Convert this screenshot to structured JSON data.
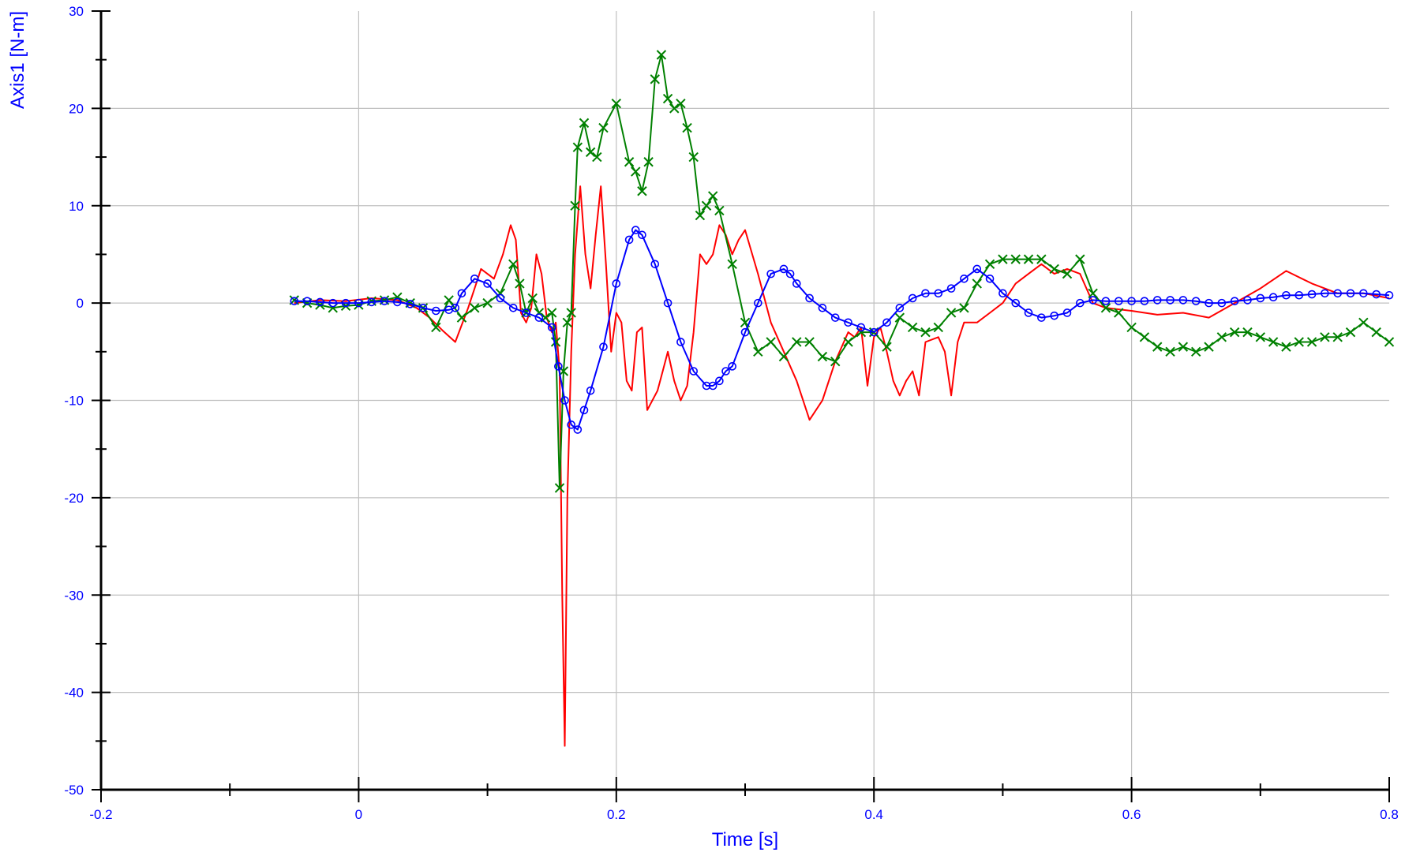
{
  "chart_data": {
    "type": "line",
    "xlabel": "Time [s]",
    "ylabel": "Axis1 [N-m]",
    "xlim": [
      -0.2,
      0.8
    ],
    "ylim": [
      -50,
      30
    ],
    "x_ticks": [
      -0.2,
      0,
      0.2,
      0.4,
      0.6,
      0.8
    ],
    "x_tick_labels": [
      "-0.2",
      "0",
      "0.2",
      "0.4",
      "0.6",
      "0.8"
    ],
    "y_ticks": [
      -50,
      -40,
      -30,
      -20,
      -10,
      0,
      10,
      20,
      30
    ],
    "y_tick_labels": [
      "-50",
      "-40",
      "-30",
      "-20",
      "-10",
      "0",
      "10",
      "20",
      "30"
    ],
    "grid": true,
    "colors": {
      "axis_text": "#0000ff",
      "grid": "#c0c0c0",
      "axis_line": "#000000"
    },
    "series": [
      {
        "color": "#ff0000",
        "marker": "none",
        "x": [
          -0.05,
          -0.03,
          -0.01,
          0.01,
          0.03,
          0.045,
          0.055,
          0.065,
          0.075,
          0.085,
          0.095,
          0.105,
          0.112,
          0.118,
          0.122,
          0.126,
          0.13,
          0.134,
          0.138,
          0.142,
          0.146,
          0.15,
          0.153,
          0.156,
          0.158,
          0.16,
          0.162,
          0.165,
          0.168,
          0.172,
          0.176,
          0.18,
          0.184,
          0.188,
          0.192,
          0.196,
          0.2,
          0.204,
          0.208,
          0.212,
          0.216,
          0.22,
          0.224,
          0.228,
          0.232,
          0.236,
          0.24,
          0.245,
          0.25,
          0.255,
          0.26,
          0.265,
          0.27,
          0.275,
          0.28,
          0.285,
          0.29,
          0.295,
          0.3,
          0.31,
          0.32,
          0.33,
          0.34,
          0.35,
          0.36,
          0.37,
          0.38,
          0.385,
          0.39,
          0.395,
          0.4,
          0.405,
          0.41,
          0.415,
          0.42,
          0.425,
          0.43,
          0.435,
          0.44,
          0.45,
          0.455,
          0.46,
          0.465,
          0.47,
          0.48,
          0.49,
          0.5,
          0.51,
          0.52,
          0.53,
          0.54,
          0.55,
          0.56,
          0.57,
          0.58,
          0.6,
          0.62,
          0.64,
          0.66,
          0.68,
          0.7,
          0.72,
          0.74,
          0.76,
          0.78,
          0.8
        ],
        "y": [
          0,
          0.3,
          0.2,
          0.5,
          0.3,
          -0.5,
          -1.5,
          -2.8,
          -4,
          -0.5,
          3.5,
          2.5,
          5,
          8,
          6.5,
          -1,
          -2,
          -0.5,
          5,
          3,
          -1.5,
          -3,
          -2,
          -7,
          -30,
          -45.5,
          -20,
          -5,
          5,
          12,
          5,
          1.5,
          7,
          12,
          4,
          -5,
          -1,
          -2,
          -8,
          -9,
          -3,
          -2.5,
          -11,
          -10,
          -9,
          -7,
          -5,
          -8,
          -10,
          -8.5,
          -3,
          5,
          4,
          5,
          8,
          7,
          5,
          6.5,
          7.5,
          3,
          -2,
          -5,
          -8,
          -12,
          -10,
          -6,
          -3,
          -3.5,
          -2.5,
          -8.5,
          -3.5,
          -2.5,
          -5,
          -8,
          -9.5,
          -8,
          -7,
          -9.5,
          -4,
          -3.5,
          -5,
          -9.5,
          -4,
          -2,
          -2,
          -1,
          0,
          2,
          3,
          4,
          3,
          3.5,
          3,
          0,
          -0.5,
          -0.8,
          -1.2,
          -1,
          -1.5,
          0,
          1.5,
          3.3,
          2,
          1,
          1,
          0.5
        ]
      },
      {
        "color": "#008000",
        "marker": "x",
        "x": [
          -0.05,
          -0.04,
          -0.03,
          -0.02,
          -0.01,
          0,
          0.01,
          0.02,
          0.03,
          0.04,
          0.05,
          0.06,
          0.07,
          0.08,
          0.09,
          0.1,
          0.11,
          0.12,
          0.125,
          0.13,
          0.135,
          0.14,
          0.145,
          0.15,
          0.153,
          0.156,
          0.159,
          0.162,
          0.165,
          0.168,
          0.17,
          0.175,
          0.18,
          0.185,
          0.19,
          0.2,
          0.21,
          0.215,
          0.22,
          0.225,
          0.23,
          0.235,
          0.24,
          0.245,
          0.25,
          0.255,
          0.26,
          0.265,
          0.27,
          0.275,
          0.28,
          0.29,
          0.3,
          0.31,
          0.32,
          0.33,
          0.34,
          0.35,
          0.36,
          0.37,
          0.38,
          0.39,
          0.4,
          0.41,
          0.42,
          0.43,
          0.44,
          0.45,
          0.46,
          0.47,
          0.48,
          0.49,
          0.5,
          0.51,
          0.52,
          0.53,
          0.54,
          0.55,
          0.56,
          0.57,
          0.58,
          0.59,
          0.6,
          0.61,
          0.62,
          0.63,
          0.64,
          0.65,
          0.66,
          0.67,
          0.68,
          0.69,
          0.7,
          0.71,
          0.72,
          0.73,
          0.74,
          0.75,
          0.76,
          0.77,
          0.78,
          0.79,
          0.8
        ],
        "y": [
          0.3,
          0,
          -0.2,
          -0.5,
          -0.3,
          -0.2,
          0.2,
          0.3,
          0.6,
          0,
          -0.5,
          -2.5,
          0.3,
          -1.5,
          -0.5,
          0,
          1,
          4,
          2,
          -1,
          0.5,
          -1,
          -1.5,
          -1,
          -4,
          -19,
          -7,
          -2,
          -1,
          10,
          16,
          18.5,
          15.5,
          15,
          18,
          20.5,
          14.5,
          13.5,
          11.5,
          14.5,
          23,
          25.5,
          21,
          20,
          20.5,
          18,
          15,
          9,
          10,
          11,
          9.5,
          4,
          -2,
          -5,
          -4,
          -5.5,
          -4,
          -4,
          -5.5,
          -6,
          -4,
          -3,
          -3,
          -4.5,
          -1.5,
          -2.5,
          -3,
          -2.5,
          -1,
          -0.5,
          2,
          4,
          4.5,
          4.5,
          4.5,
          4.5,
          3.5,
          3,
          4.5,
          1,
          -0.5,
          -1,
          -2.5,
          -3.5,
          -4.5,
          -5,
          -4.5,
          -5,
          -4.5,
          -3.5,
          -3,
          -3,
          -3.5,
          -4,
          -4.5,
          -4,
          -4,
          -3.5,
          -3.5,
          -3,
          -2,
          -3,
          -4
        ]
      },
      {
        "color": "#0000ff",
        "marker": "o",
        "x": [
          -0.05,
          -0.04,
          -0.03,
          -0.02,
          -0.01,
          0,
          0.01,
          0.02,
          0.03,
          0.04,
          0.05,
          0.06,
          0.07,
          0.075,
          0.08,
          0.09,
          0.1,
          0.11,
          0.12,
          0.13,
          0.14,
          0.15,
          0.155,
          0.16,
          0.165,
          0.17,
          0.175,
          0.18,
          0.19,
          0.2,
          0.21,
          0.215,
          0.22,
          0.23,
          0.24,
          0.25,
          0.26,
          0.27,
          0.275,
          0.28,
          0.285,
          0.29,
          0.3,
          0.31,
          0.32,
          0.33,
          0.335,
          0.34,
          0.35,
          0.36,
          0.37,
          0.38,
          0.39,
          0.4,
          0.41,
          0.42,
          0.43,
          0.44,
          0.45,
          0.46,
          0.47,
          0.48,
          0.49,
          0.5,
          0.51,
          0.52,
          0.53,
          0.54,
          0.55,
          0.56,
          0.57,
          0.58,
          0.59,
          0.6,
          0.61,
          0.62,
          0.63,
          0.64,
          0.65,
          0.66,
          0.67,
          0.68,
          0.69,
          0.7,
          0.71,
          0.72,
          0.73,
          0.74,
          0.75,
          0.76,
          0.77,
          0.78,
          0.79,
          0.8
        ],
        "y": [
          0.2,
          0.2,
          0.1,
          0,
          0,
          0,
          0.1,
          0.2,
          0.1,
          -0.1,
          -0.5,
          -0.8,
          -0.7,
          -0.5,
          1,
          2.5,
          2,
          0.5,
          -0.5,
          -1,
          -1.5,
          -2.5,
          -6.5,
          -10,
          -12.5,
          -13,
          -11,
          -9,
          -4.5,
          2,
          6.5,
          7.5,
          7,
          4,
          0,
          -4,
          -7,
          -8.5,
          -8.5,
          -8,
          -7,
          -6.5,
          -3,
          0,
          3,
          3.5,
          3,
          2,
          0.5,
          -0.5,
          -1.5,
          -2,
          -2.5,
          -3,
          -2,
          -0.5,
          0.5,
          1,
          1,
          1.5,
          2.5,
          3.5,
          2.5,
          1,
          0,
          -1,
          -1.5,
          -1.3,
          -1,
          0,
          0.3,
          0.2,
          0.2,
          0.2,
          0.2,
          0.3,
          0.3,
          0.3,
          0.2,
          0,
          0,
          0.2,
          0.3,
          0.5,
          0.6,
          0.8,
          0.8,
          0.9,
          1,
          1,
          1,
          1,
          0.9,
          0.8
        ]
      }
    ]
  }
}
